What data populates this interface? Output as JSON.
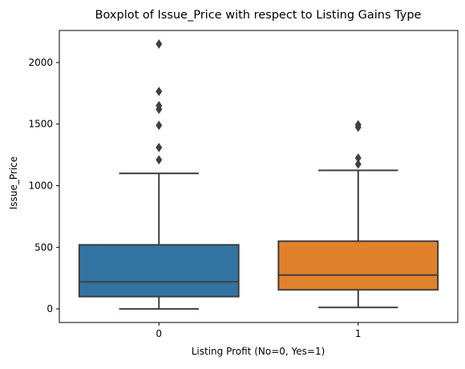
{
  "chart_data": {
    "type": "boxplot",
    "title": "Boxplot of Issue_Price with respect to Listing Gains Type",
    "xlabel": "Listing Profit (No=0, Yes=1)",
    "ylabel": "Issue_Price",
    "categories": [
      "0",
      "1"
    ],
    "ylim": [
      -110,
      2260
    ],
    "yticks": [
      0,
      500,
      1000,
      1500,
      2000
    ],
    "grid": false,
    "boxes": [
      {
        "category": "0",
        "color": "#3274a1",
        "whisker_low": 0,
        "q1": 100,
        "median": 220,
        "q3": 520,
        "whisker_high": 1100,
        "outliers": [
          1210,
          1310,
          1490,
          1620,
          1650,
          1765,
          2150
        ]
      },
      {
        "category": "1",
        "color": "#e1812c",
        "whisker_low": 12,
        "q1": 155,
        "median": 275,
        "q3": 550,
        "whisker_high": 1125,
        "outliers": [
          1175,
          1225,
          1475,
          1495
        ]
      }
    ]
  }
}
